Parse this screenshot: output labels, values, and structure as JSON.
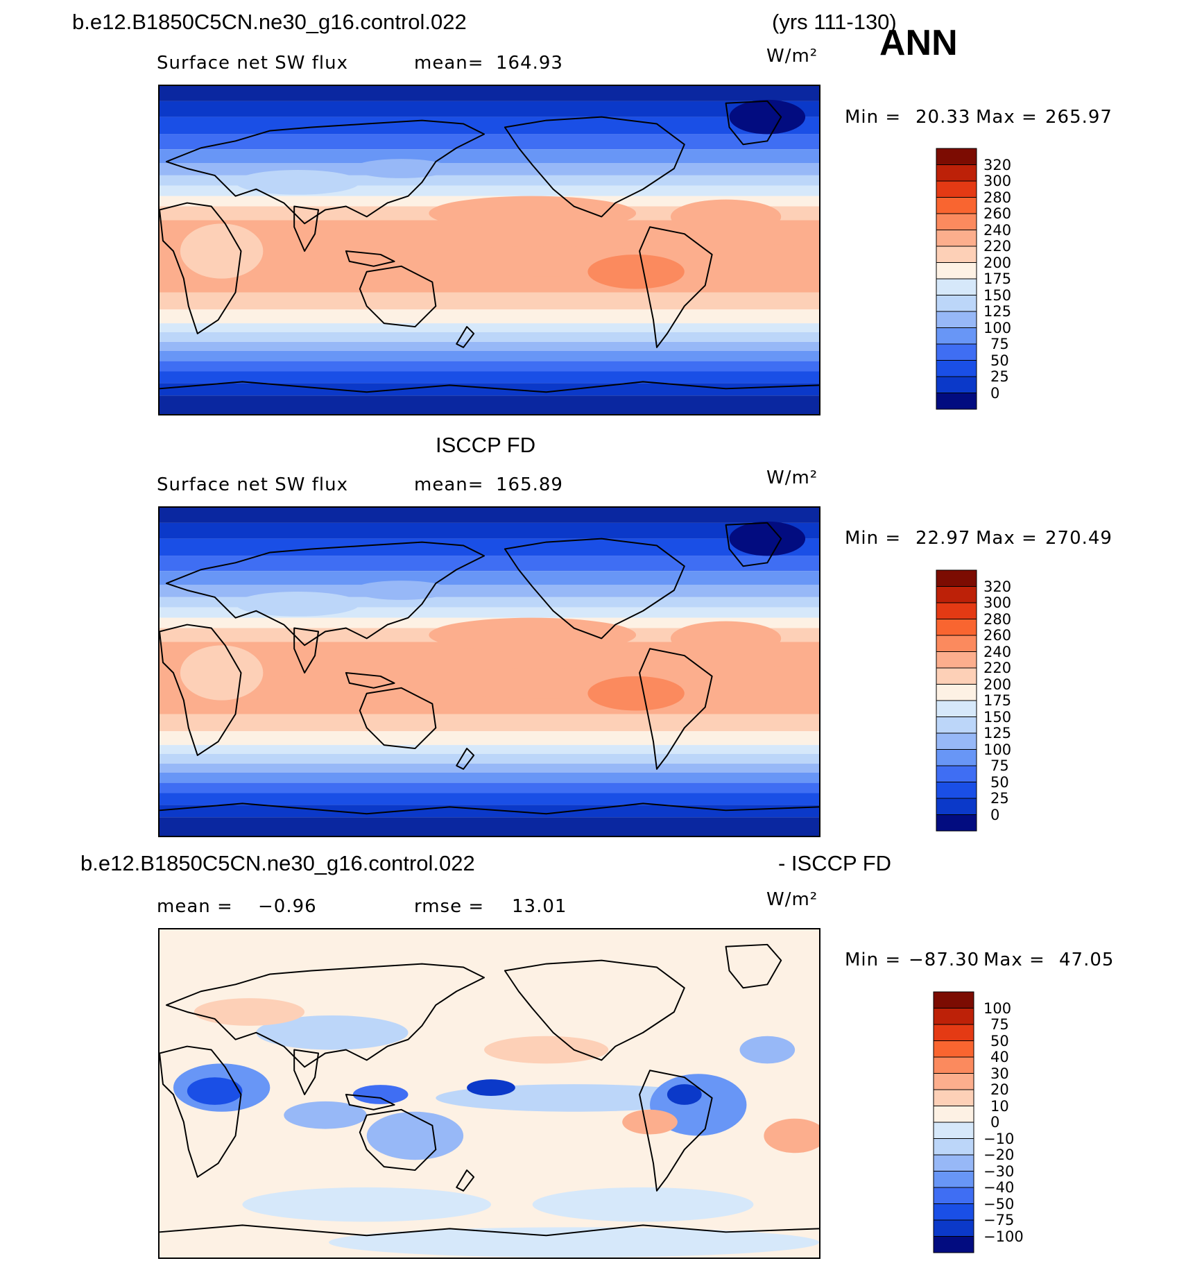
{
  "header": {
    "case_name": "b.e12.B1850C5CN.ne30_g16.control.022",
    "years": "(yrs 111-130)",
    "season": "ANN"
  },
  "colors": {
    "warm_scale": [
      "#fdf1e4",
      "#fdd0b7",
      "#fcae8d",
      "#fb8a5e",
      "#f96530",
      "#e43a14",
      "#bd2108",
      "#7c0c02"
    ],
    "cool_scale": [
      "#d6e8fa",
      "#bcd6f9",
      "#97b8f7",
      "#6896f6",
      "#3f6ef3",
      "#1a4fe6",
      "#0b39c9",
      "#0a27a0",
      "#020c80"
    ]
  },
  "chart_data": [
    {
      "type": "heatmap",
      "title": "",
      "variable": "Surface net SW flux",
      "mean_label": "mean=",
      "mean_value": "164.93",
      "units": "W/m²",
      "min_label": "Min =",
      "min_value": "20.33",
      "max_label": "Max =",
      "max_value": "265.97",
      "colorbar_levels": [
        "320",
        "300",
        "280",
        "260",
        "240",
        "220",
        "200",
        "175",
        "150",
        "125",
        "100",
        "75",
        "50",
        "25",
        "0"
      ],
      "colorbar_colors": [
        "#7c0c02",
        "#bd2108",
        "#e43a14",
        "#f96530",
        "#fb8a5e",
        "#fcae8d",
        "#fdd0b7",
        "#fdf1e4",
        "#d6e8fa",
        "#bcd6f9",
        "#97b8f7",
        "#6896f6",
        "#3f6ef3",
        "#1a4fe6",
        "#0b39c9",
        "#020c80"
      ]
    },
    {
      "type": "heatmap",
      "title": "ISCCP FD",
      "variable": "Surface net SW flux",
      "mean_label": "mean=",
      "mean_value": "165.89",
      "units": "W/m²",
      "min_label": "Min =",
      "min_value": "22.97",
      "max_label": "Max =",
      "max_value": "270.49",
      "colorbar_levels": [
        "320",
        "300",
        "280",
        "260",
        "240",
        "220",
        "200",
        "175",
        "150",
        "125",
        "100",
        "75",
        "50",
        "25",
        "0"
      ],
      "colorbar_colors": [
        "#7c0c02",
        "#bd2108",
        "#e43a14",
        "#f96530",
        "#fb8a5e",
        "#fcae8d",
        "#fdd0b7",
        "#fdf1e4",
        "#d6e8fa",
        "#bcd6f9",
        "#97b8f7",
        "#6896f6",
        "#3f6ef3",
        "#1a4fe6",
        "#0b39c9",
        "#020c80"
      ]
    },
    {
      "type": "heatmap",
      "title_left": "b.e12.B1850C5CN.ne30_g16.control.022",
      "title_right": "- ISCCP FD",
      "mean_label": "mean =",
      "mean_value": "−0.96",
      "rmse_label": "rmse =",
      "rmse_value": "13.01",
      "units": "W/m²",
      "min_label": "Min =",
      "min_value": "−87.30",
      "max_label": "Max =",
      "max_value": "47.05",
      "colorbar_levels": [
        "100",
        "75",
        "50",
        "40",
        "30",
        "20",
        "10",
        "0",
        "−10",
        "−20",
        "−30",
        "−40",
        "−50",
        "−75",
        "−100"
      ],
      "colorbar_colors": [
        "#7c0c02",
        "#bd2108",
        "#e43a14",
        "#f96530",
        "#fb8a5e",
        "#fcae8d",
        "#fdd0b7",
        "#fdf1e4",
        "#d6e8fa",
        "#bcd6f9",
        "#97b8f7",
        "#6896f6",
        "#3f6ef3",
        "#1a4fe6",
        "#0b39c9",
        "#020c80"
      ]
    }
  ]
}
